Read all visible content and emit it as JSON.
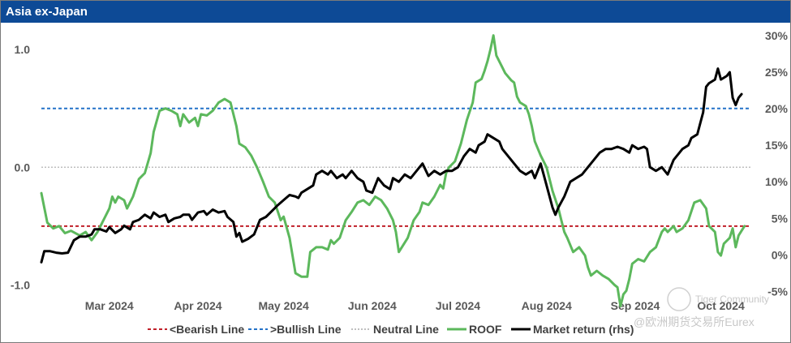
{
  "window": {
    "title": "Asia ex-Japan"
  },
  "watermark": {
    "line1": "Tiger Community",
    "line2": "@欧洲期货交易所Eurex"
  },
  "colors": {
    "roof": "#5cb85c",
    "market": "#000000",
    "bearish": "#c0202a",
    "bullish": "#2472c8",
    "neutral": "#bfbfbf",
    "title_bg": "#0d4a96"
  },
  "chart_data": {
    "type": "line",
    "title": "Asia ex-Japan",
    "xlabel": "",
    "ylabel": "",
    "x_range": [
      0,
      240
    ],
    "ylim": [
      -1.08,
      1.18
    ],
    "y2lim": [
      -5.4,
      31
    ],
    "y_ticks": [
      {
        "value": 1.0,
        "label": "1.0"
      },
      {
        "value": 0.0,
        "label": "0.0"
      },
      {
        "value": -1.0,
        "label": "-1.0"
      }
    ],
    "y2_ticks": [
      {
        "value": 30,
        "label": "30%"
      },
      {
        "value": 25,
        "label": "25%"
      },
      {
        "value": 20,
        "label": "20%"
      },
      {
        "value": 15,
        "label": "15%"
      },
      {
        "value": 10,
        "label": "10%"
      },
      {
        "value": 5,
        "label": "5%"
      },
      {
        "value": 0,
        "label": "0%"
      },
      {
        "value": -5,
        "label": "-5%"
      }
    ],
    "x_ticks": [
      {
        "x": 23,
        "label": "Mar 2024"
      },
      {
        "x": 53,
        "label": "Apr 2024"
      },
      {
        "x": 82,
        "label": "May 2024"
      },
      {
        "x": 112,
        "label": "Jun 2024"
      },
      {
        "x": 141,
        "label": "Jul 2024"
      },
      {
        "x": 171,
        "label": "Aug 2024"
      },
      {
        "x": 201,
        "label": "Sep 2024"
      },
      {
        "x": 230,
        "label": "Oct 2024"
      }
    ],
    "reference_lines": [
      {
        "name": "<Bearish Line",
        "value": -0.5,
        "style": "dashed"
      },
      {
        "name": ">Bullish Line",
        "value": 0.5,
        "style": "dashed"
      },
      {
        "name": "Neutral Line",
        "value": 0.0,
        "style": "dotted"
      }
    ],
    "series": [
      {
        "name": "ROOF",
        "axis": "left",
        "points": [
          [
            0,
            -0.22
          ],
          [
            2,
            -0.47
          ],
          [
            4,
            -0.52
          ],
          [
            6,
            -0.5
          ],
          [
            8,
            -0.56
          ],
          [
            10,
            -0.54
          ],
          [
            13,
            -0.58
          ],
          [
            15,
            -0.55
          ],
          [
            17,
            -0.62
          ],
          [
            19,
            -0.55
          ],
          [
            21,
            -0.45
          ],
          [
            23,
            -0.35
          ],
          [
            24,
            -0.25
          ],
          [
            25,
            -0.3
          ],
          [
            26,
            -0.25
          ],
          [
            28,
            -0.28
          ],
          [
            29,
            -0.35
          ],
          [
            31,
            -0.25
          ],
          [
            33,
            -0.1
          ],
          [
            35,
            -0.05
          ],
          [
            37,
            0.12
          ],
          [
            38,
            0.3
          ],
          [
            40,
            0.48
          ],
          [
            42,
            0.5
          ],
          [
            44,
            0.48
          ],
          [
            46,
            0.45
          ],
          [
            47,
            0.35
          ],
          [
            48,
            0.45
          ],
          [
            50,
            0.38
          ],
          [
            52,
            0.42
          ],
          [
            53,
            0.35
          ],
          [
            54,
            0.45
          ],
          [
            56,
            0.44
          ],
          [
            58,
            0.48
          ],
          [
            60,
            0.55
          ],
          [
            62,
            0.58
          ],
          [
            64,
            0.55
          ],
          [
            66,
            0.35
          ],
          [
            67,
            0.2
          ],
          [
            69,
            0.17
          ],
          [
            71,
            0.1
          ],
          [
            73,
            0.0
          ],
          [
            75,
            -0.12
          ],
          [
            77,
            -0.25
          ],
          [
            79,
            -0.3
          ],
          [
            81,
            -0.45
          ],
          [
            82,
            -0.42
          ],
          [
            84,
            -0.6
          ],
          [
            86,
            -0.9
          ],
          [
            88,
            -0.93
          ],
          [
            90,
            -0.93
          ],
          [
            91,
            -0.72
          ],
          [
            93,
            -0.68
          ],
          [
            95,
            -0.68
          ],
          [
            97,
            -0.7
          ],
          [
            98,
            -0.62
          ],
          [
            99,
            -0.65
          ],
          [
            101,
            -0.6
          ],
          [
            103,
            -0.45
          ],
          [
            105,
            -0.38
          ],
          [
            107,
            -0.3
          ],
          [
            109,
            -0.28
          ],
          [
            111,
            -0.32
          ],
          [
            113,
            -0.25
          ],
          [
            115,
            -0.28
          ],
          [
            117,
            -0.35
          ],
          [
            119,
            -0.45
          ],
          [
            120,
            -0.55
          ],
          [
            121,
            -0.72
          ],
          [
            122,
            -0.68
          ],
          [
            124,
            -0.6
          ],
          [
            126,
            -0.45
          ],
          [
            128,
            -0.38
          ],
          [
            129,
            -0.3
          ],
          [
            131,
            -0.32
          ],
          [
            133,
            -0.25
          ],
          [
            135,
            -0.15
          ],
          [
            136,
            -0.18
          ],
          [
            137,
            -0.05
          ],
          [
            138,
            0.0
          ],
          [
            140,
            0.05
          ],
          [
            142,
            0.2
          ],
          [
            144,
            0.4
          ],
          [
            146,
            0.55
          ],
          [
            147,
            0.72
          ],
          [
            149,
            0.75
          ],
          [
            150,
            0.82
          ],
          [
            151,
            0.9
          ],
          [
            152,
            1.0
          ],
          [
            153,
            1.12
          ],
          [
            154,
            0.95
          ],
          [
            156,
            0.85
          ],
          [
            157,
            0.8
          ],
          [
            159,
            0.74
          ],
          [
            160,
            0.72
          ],
          [
            161,
            0.6
          ],
          [
            162,
            0.55
          ],
          [
            164,
            0.52
          ],
          [
            165,
            0.45
          ],
          [
            166,
            0.35
          ],
          [
            167,
            0.22
          ],
          [
            169,
            0.1
          ],
          [
            171,
            0.0
          ],
          [
            173,
            -0.2
          ],
          [
            175,
            -0.35
          ],
          [
            176,
            -0.45
          ],
          [
            177,
            -0.55
          ],
          [
            178,
            -0.6
          ],
          [
            180,
            -0.72
          ],
          [
            182,
            -0.68
          ],
          [
            184,
            -0.75
          ],
          [
            185,
            -0.85
          ],
          [
            186,
            -0.92
          ],
          [
            188,
            -0.88
          ],
          [
            190,
            -0.92
          ],
          [
            192,
            -0.95
          ],
          [
            194,
            -1.0
          ],
          [
            195,
            -1.02
          ],
          [
            196,
            -1.18
          ],
          [
            197,
            -1.08
          ],
          [
            198,
            -1.05
          ],
          [
            199,
            -0.95
          ],
          [
            200,
            -0.82
          ],
          [
            202,
            -0.78
          ],
          [
            204,
            -0.8
          ],
          [
            206,
            -0.72
          ],
          [
            208,
            -0.68
          ],
          [
            210,
            -0.55
          ],
          [
            211,
            -0.52
          ],
          [
            212,
            -0.55
          ],
          [
            214,
            -0.5
          ],
          [
            215,
            -0.55
          ],
          [
            217,
            -0.52
          ],
          [
            219,
            -0.45
          ],
          [
            221,
            -0.3
          ],
          [
            223,
            -0.28
          ],
          [
            225,
            -0.35
          ],
          [
            226,
            -0.5
          ],
          [
            228,
            -0.55
          ],
          [
            229,
            -0.72
          ],
          [
            230,
            -0.75
          ],
          [
            231,
            -0.65
          ],
          [
            233,
            -0.6
          ],
          [
            234,
            -0.52
          ],
          [
            235,
            -0.68
          ],
          [
            236,
            -0.58
          ],
          [
            238,
            -0.5
          ]
        ]
      },
      {
        "name": "Market return (rhs)",
        "axis": "right",
        "points": [
          [
            0,
            -1.0
          ],
          [
            1,
            0.5
          ],
          [
            3,
            0.5
          ],
          [
            5,
            0.3
          ],
          [
            7,
            0.2
          ],
          [
            9,
            0.3
          ],
          [
            11,
            2.0
          ],
          [
            13,
            2.5
          ],
          [
            15,
            2.5
          ],
          [
            17,
            2.8
          ],
          [
            18,
            3.5
          ],
          [
            20,
            3.5
          ],
          [
            22,
            3.2
          ],
          [
            23,
            3.8
          ],
          [
            25,
            3.0
          ],
          [
            27,
            3.5
          ],
          [
            28,
            4.0
          ],
          [
            30,
            3.5
          ],
          [
            31,
            4.5
          ],
          [
            33,
            4.8
          ],
          [
            35,
            5.5
          ],
          [
            37,
            5.0
          ],
          [
            38,
            5.8
          ],
          [
            40,
            5.2
          ],
          [
            42,
            5.5
          ],
          [
            43,
            4.5
          ],
          [
            45,
            5.0
          ],
          [
            47,
            5.2
          ],
          [
            48,
            5.5
          ],
          [
            50,
            5.5
          ],
          [
            51,
            4.8
          ],
          [
            53,
            5.8
          ],
          [
            55,
            6.0
          ],
          [
            56,
            5.5
          ],
          [
            58,
            6.2
          ],
          [
            60,
            5.8
          ],
          [
            62,
            6.0
          ],
          [
            63,
            5.2
          ],
          [
            65,
            4.5
          ],
          [
            66,
            2.5
          ],
          [
            67,
            3.0
          ],
          [
            68,
            1.8
          ],
          [
            70,
            2.2
          ],
          [
            72,
            2.8
          ],
          [
            74,
            4.8
          ],
          [
            76,
            5.2
          ],
          [
            78,
            6.0
          ],
          [
            80,
            6.8
          ],
          [
            82,
            7.5
          ],
          [
            84,
            8.2
          ],
          [
            86,
            8.0
          ],
          [
            87,
            7.8
          ],
          [
            88,
            8.5
          ],
          [
            90,
            9.0
          ],
          [
            92,
            9.5
          ],
          [
            93,
            11.0
          ],
          [
            95,
            11.5
          ],
          [
            97,
            11.0
          ],
          [
            98,
            11.5
          ],
          [
            100,
            10.5
          ],
          [
            102,
            11.0
          ],
          [
            103,
            10.5
          ],
          [
            105,
            11.5
          ],
          [
            107,
            10.5
          ],
          [
            109,
            10.0
          ],
          [
            110,
            8.8
          ],
          [
            112,
            8.5
          ],
          [
            114,
            10.5
          ],
          [
            116,
            9.5
          ],
          [
            118,
            9.0
          ],
          [
            119,
            10.5
          ],
          [
            121,
            10.0
          ],
          [
            123,
            11.0
          ],
          [
            125,
            10.5
          ],
          [
            127,
            11.5
          ],
          [
            129,
            12.5
          ],
          [
            131,
            10.8
          ],
          [
            133,
            11.5
          ],
          [
            135,
            11.0
          ],
          [
            137,
            11.5
          ],
          [
            139,
            11.5
          ],
          [
            141,
            12.0
          ],
          [
            143,
            13.5
          ],
          [
            145,
            14.5
          ],
          [
            147,
            14.0
          ],
          [
            148,
            15.0
          ],
          [
            150,
            15.5
          ],
          [
            151,
            16.5
          ],
          [
            153,
            16.0
          ],
          [
            155,
            15.5
          ],
          [
            156,
            14.5
          ],
          [
            158,
            13.5
          ],
          [
            160,
            12.5
          ],
          [
            162,
            11.5
          ],
          [
            164,
            11.0
          ],
          [
            166,
            11.5
          ],
          [
            167,
            10.5
          ],
          [
            169,
            12.5
          ],
          [
            170,
            11.0
          ],
          [
            172,
            8.0
          ],
          [
            173,
            6.5
          ],
          [
            174,
            5.5
          ],
          [
            175,
            6.5
          ],
          [
            177,
            8.0
          ],
          [
            179,
            10.0
          ],
          [
            181,
            10.5
          ],
          [
            183,
            11.0
          ],
          [
            185,
            12.0
          ],
          [
            187,
            13.0
          ],
          [
            189,
            14.0
          ],
          [
            191,
            14.5
          ],
          [
            193,
            14.5
          ],
          [
            195,
            14.8
          ],
          [
            197,
            14.5
          ],
          [
            199,
            14.0
          ],
          [
            200,
            15.0
          ],
          [
            202,
            14.5
          ],
          [
            204,
            14.8
          ],
          [
            205,
            14.5
          ],
          [
            206,
            12.0
          ],
          [
            208,
            11.5
          ],
          [
            210,
            12.0
          ],
          [
            212,
            11.0
          ],
          [
            214,
            13.0
          ],
          [
            216,
            14.0
          ],
          [
            217,
            14.5
          ],
          [
            219,
            15.0
          ],
          [
            220,
            16.0
          ],
          [
            222,
            16.5
          ],
          [
            223,
            18.0
          ],
          [
            224,
            19.5
          ],
          [
            225,
            23.0
          ],
          [
            226,
            23.5
          ],
          [
            228,
            24.0
          ],
          [
            229,
            25.5
          ],
          [
            230,
            24.0
          ],
          [
            232,
            24.5
          ],
          [
            233,
            25.0
          ],
          [
            234,
            21.5
          ],
          [
            235,
            20.5
          ],
          [
            236,
            21.5
          ],
          [
            237,
            22.0
          ]
        ]
      }
    ],
    "legend": {
      "placement": "bottom",
      "entries": [
        {
          "label": "<Bearish Line",
          "style": "dashed",
          "color_key": "bearish"
        },
        {
          "label": ">Bullish Line",
          "style": "dashed",
          "color_key": "bullish"
        },
        {
          "label": "Neutral Line",
          "style": "dotted",
          "color_key": "neutral"
        },
        {
          "label": "ROOF",
          "style": "solid",
          "color_key": "roof"
        },
        {
          "label": "Market return (rhs)",
          "style": "solid",
          "color_key": "market"
        }
      ]
    }
  }
}
